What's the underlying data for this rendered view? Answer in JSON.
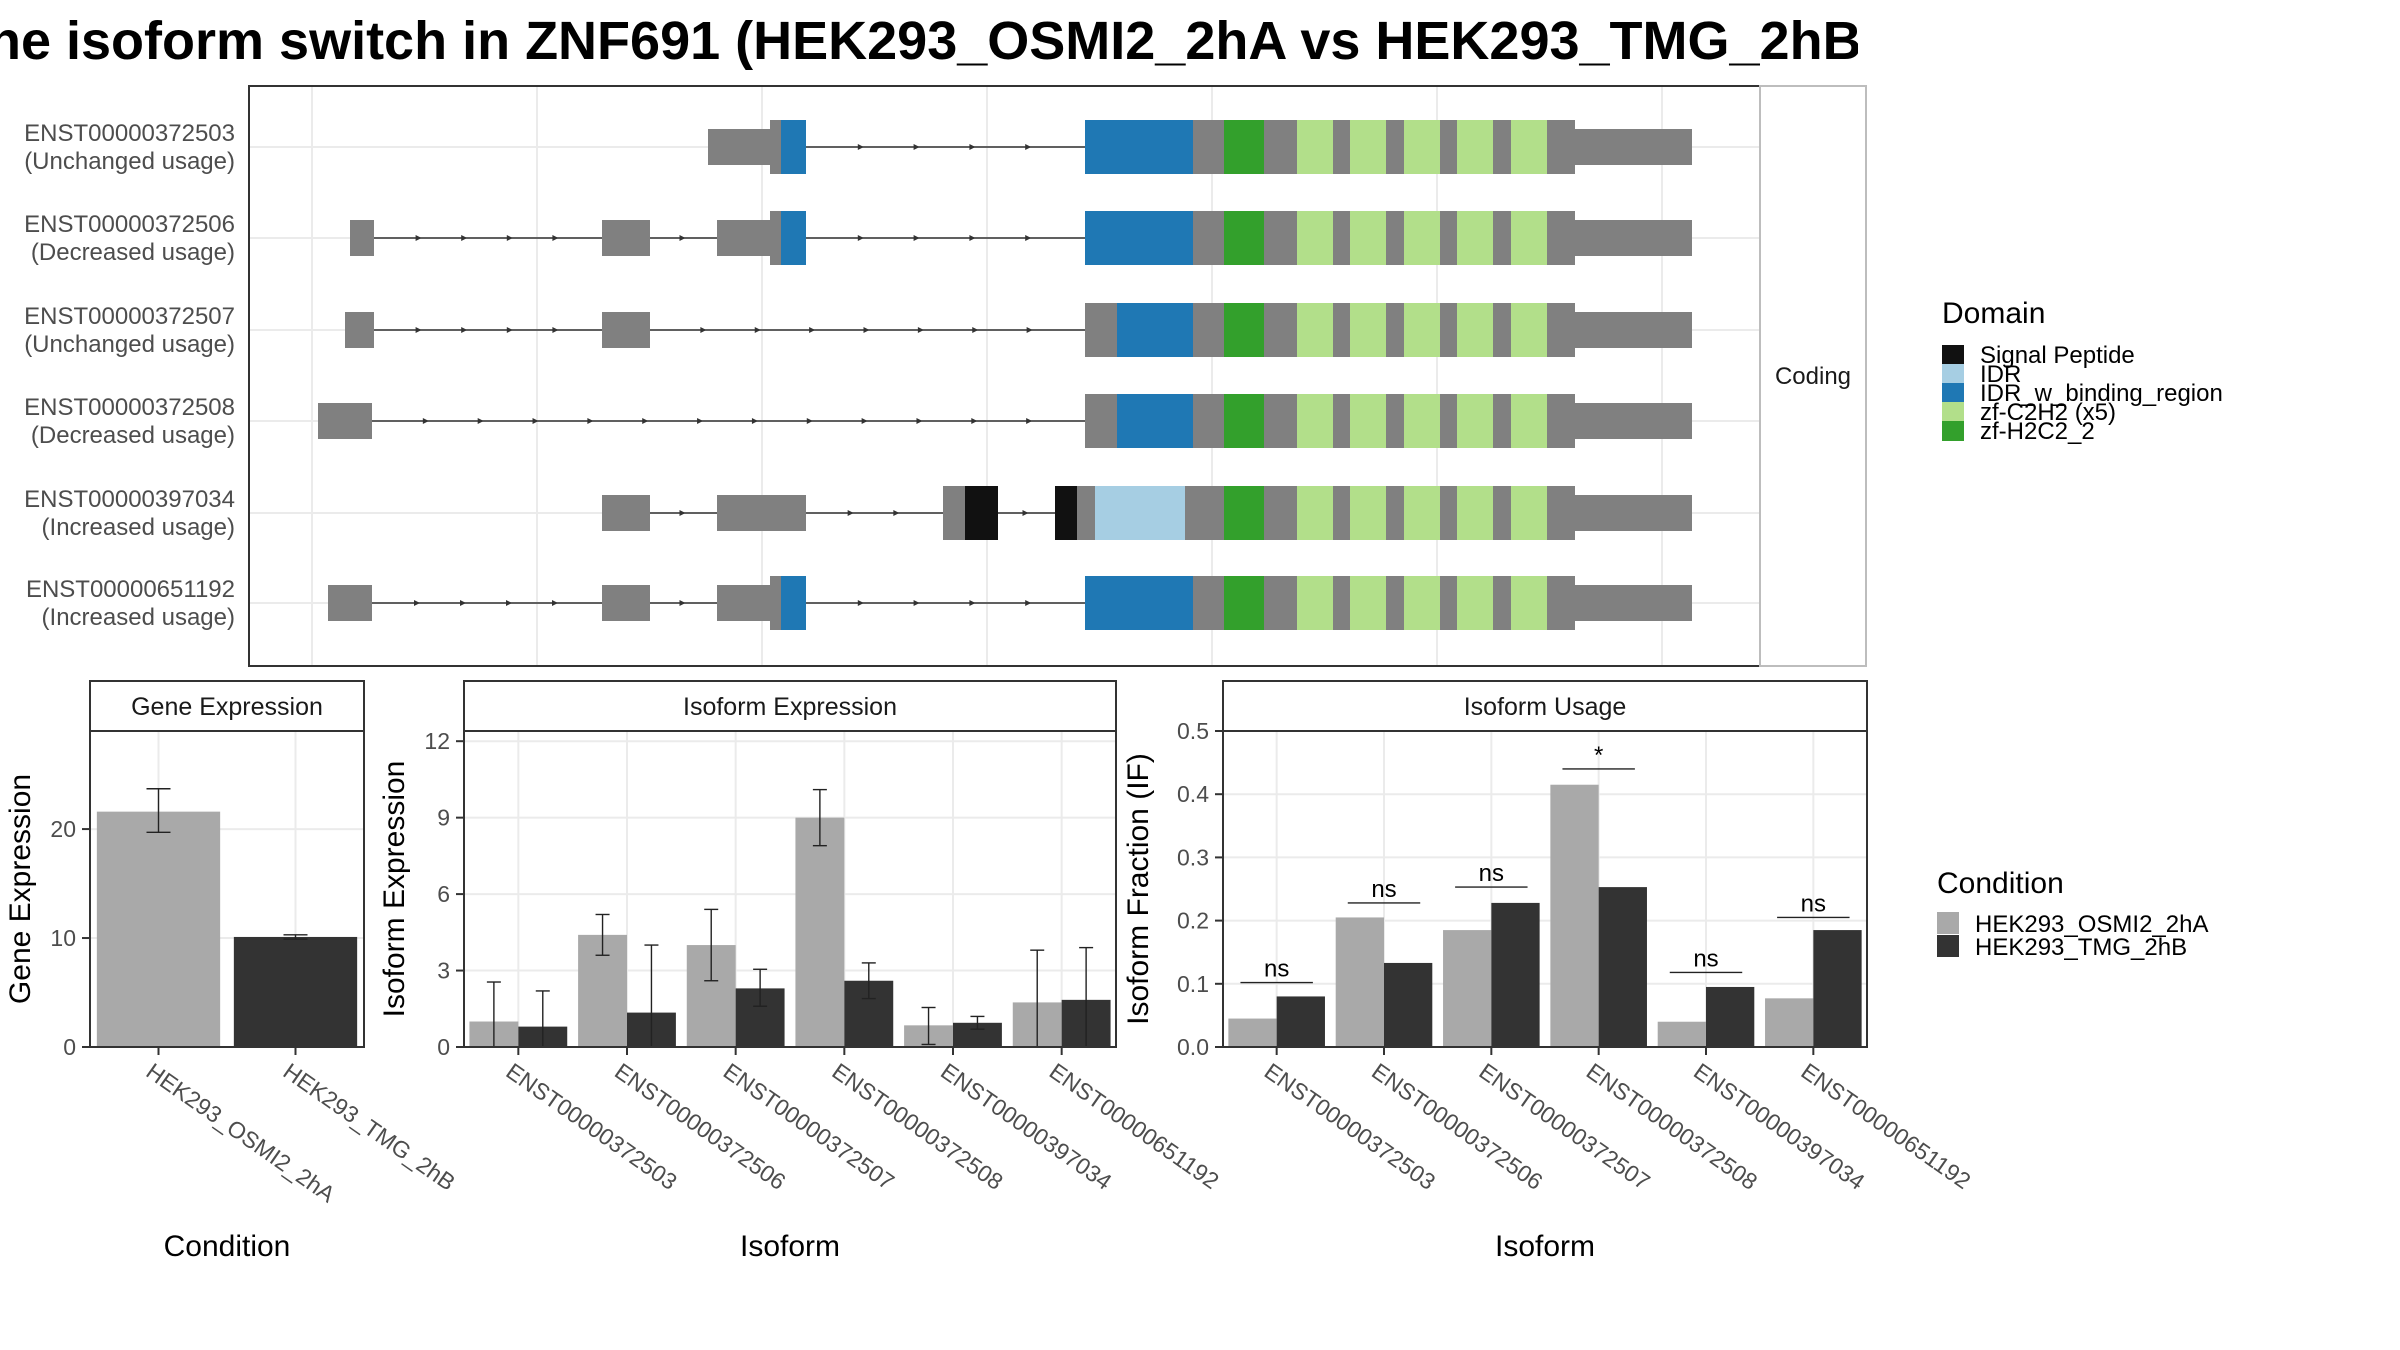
{
  "title": "he isoform switch in ZNF691 (HEK293_OSMI2_2hA vs HEK293_TMG_2hB",
  "colors": {
    "cond_a": "#A9A9A9",
    "cond_b": "#333333",
    "exon": "#808080",
    "panel_border": "#333333",
    "grid": "#EBEBEB",
    "strip_fill": "#FFFFFF"
  },
  "chart_data": [
    {
      "type": "transcript_structure",
      "strip_label": "Coding",
      "transcripts": [
        {
          "id": "ENST00000372503",
          "usage": "(Unchanged usage)"
        },
        {
          "id": "ENST00000372506",
          "usage": "(Decreased usage)"
        },
        {
          "id": "ENST00000372507",
          "usage": "(Unchanged usage)"
        },
        {
          "id": "ENST00000372508",
          "usage": "(Decreased usage)"
        },
        {
          "id": "ENST00000397034",
          "usage": "(Increased usage)"
        },
        {
          "id": "ENST00000651192",
          "usage": "(Increased usage)"
        }
      ],
      "legend": {
        "title": "Domain",
        "entries": [
          {
            "name": "Signal Peptide",
            "color": "#111111"
          },
          {
            "name": "IDR",
            "color": "#A6CEE3"
          },
          {
            "name": "IDR_w_binding_region",
            "color": "#1F78B4"
          },
          {
            "name": "zf-C2H2 (x5)",
            "color": "#B2DF8A"
          },
          {
            "name": "zf-H2C2_2",
            "color": "#33A02C"
          }
        ]
      }
    },
    {
      "type": "bar",
      "strip_label": "Gene Expression",
      "xlabel": "Condition",
      "ylabel": "Gene Expression",
      "ylim": [
        0,
        29
      ],
      "yticks": [
        0,
        10,
        20
      ],
      "categories": [
        "HEK293_OSMI2_2hA",
        "HEK293_TMG_2hB"
      ],
      "values": [
        21.6,
        10.1
      ],
      "errors": [
        [
          19.7,
          23.7
        ],
        [
          9.9,
          10.3
        ]
      ]
    },
    {
      "type": "bar",
      "strip_label": "Isoform Expression",
      "xlabel": "Isoform",
      "ylabel": "Isoform Expression",
      "ylim": [
        0,
        12.4
      ],
      "yticks": [
        0,
        3,
        6,
        9,
        12
      ],
      "categories": [
        "ENST00000372503",
        "ENST00000372506",
        "ENST00000372507",
        "ENST00000372508",
        "ENST00000397034",
        "ENST00000651192"
      ],
      "series": [
        {
          "name": "HEK293_OSMI2_2hA",
          "values": [
            1.0,
            4.4,
            4.0,
            9.0,
            0.85,
            1.75
          ],
          "errors": [
            [
              0.0,
              2.55
            ],
            [
              3.6,
              5.2
            ],
            [
              2.6,
              5.4
            ],
            [
              7.9,
              10.1
            ],
            [
              0.1,
              1.55
            ],
            [
              0.0,
              3.8
            ]
          ]
        },
        {
          "name": "HEK293_TMG_2hB",
          "values": [
            0.8,
            1.35,
            2.3,
            2.6,
            0.95,
            1.85
          ],
          "errors": [
            [
              0.0,
              2.2
            ],
            [
              0.0,
              4.0
            ],
            [
              1.6,
              3.05
            ],
            [
              1.9,
              3.3
            ],
            [
              0.7,
              1.2
            ],
            [
              0.0,
              3.9
            ]
          ]
        }
      ]
    },
    {
      "type": "bar",
      "strip_label": "Isoform Usage",
      "xlabel": "Isoform",
      "ylabel": "Isoform Fraction (IF)",
      "ylim": [
        0,
        0.5
      ],
      "yticks": [
        "0.0",
        "0.1",
        "0.2",
        "0.3",
        "0.4",
        "0.5"
      ],
      "categories": [
        "ENST00000372503",
        "ENST00000372506",
        "ENST00000372507",
        "ENST00000372508",
        "ENST00000397034",
        "ENST00000651192"
      ],
      "series": [
        {
          "name": "HEK293_OSMI2_2hA",
          "values": [
            0.045,
            0.205,
            0.185,
            0.415,
            0.04,
            0.077
          ]
        },
        {
          "name": "HEK293_TMG_2hB",
          "values": [
            0.08,
            0.133,
            0.228,
            0.253,
            0.095,
            0.185
          ]
        }
      ],
      "significance": [
        "ns",
        "ns",
        "ns",
        "*",
        "ns",
        "ns"
      ],
      "significance_heights": [
        0.102,
        0.228,
        0.253,
        0.44,
        0.118,
        0.205
      ]
    }
  ],
  "condition_legend": {
    "title": "Condition",
    "entries": [
      "HEK293_OSMI2_2hA",
      "HEK293_TMG_2hB"
    ]
  }
}
